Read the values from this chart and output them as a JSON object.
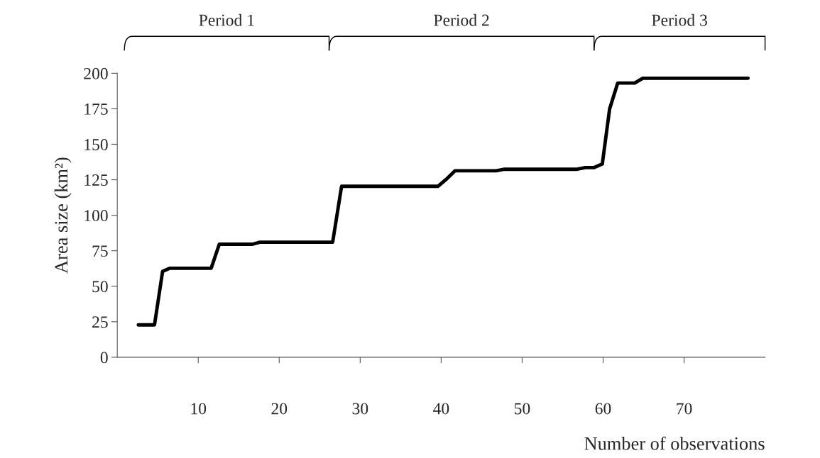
{
  "chart_data": {
    "type": "line",
    "xlabel": "Number of observations",
    "ylabel": "Area size (km²)",
    "x": [
      2.6,
      4.6,
      5.6,
      6.5,
      11.6,
      12.6,
      16.7,
      17.6,
      26.6,
      27.7,
      39.6,
      40.6,
      41.7,
      46.8,
      47.8,
      56.8,
      57.8,
      58.9,
      59.9,
      60.8,
      61.8,
      63.9,
      64.9,
      77.9
    ],
    "series": [
      {
        "color": "#000000",
        "values": [
          22.8,
          22.8,
          60.5,
          62.7,
          62.7,
          79.6,
          79.6,
          81,
          81,
          120.4,
          120.4,
          125.2,
          131.3,
          131.3,
          132.4,
          132.4,
          133.6,
          133.6,
          136.1,
          174.8,
          193.1,
          193.1,
          196.5,
          196.5
        ]
      }
    ],
    "xlim": [
      0,
      80
    ],
    "xticks": [
      10,
      20,
      30,
      40,
      50,
      60,
      70
    ],
    "ylim": [
      0,
      200
    ],
    "yticks": [
      0,
      25,
      50,
      75,
      100,
      125,
      150,
      175,
      200
    ],
    "annotations": [
      "Period 1",
      "Period 2",
      "Period 3"
    ],
    "grid": false,
    "legend": false,
    "marker": "none",
    "line_style": "solid"
  }
}
